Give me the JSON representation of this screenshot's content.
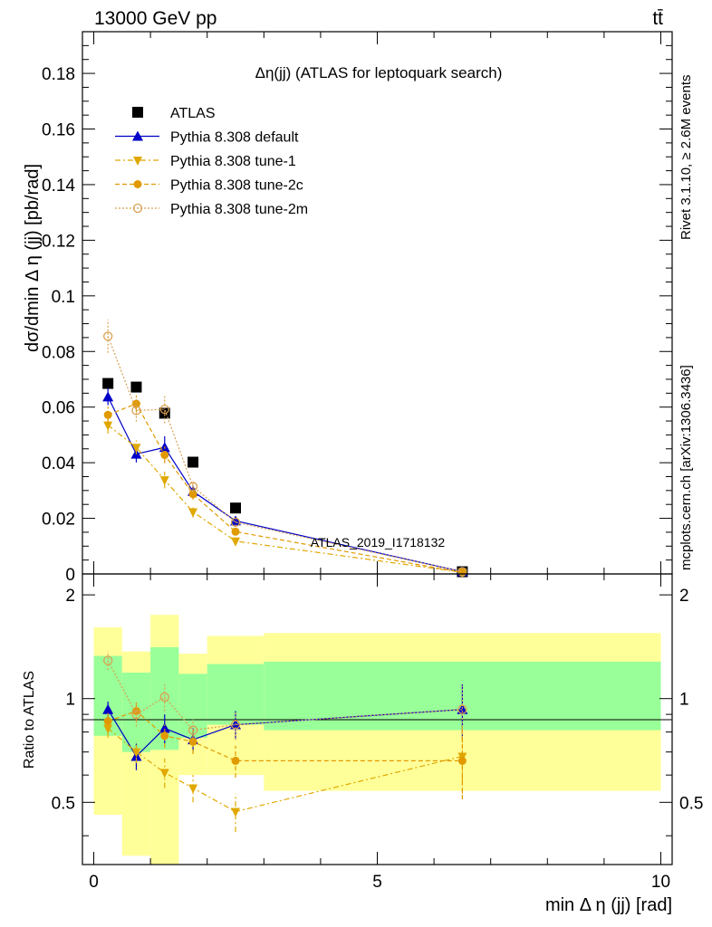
{
  "header": {
    "left": "13000 GeV pp",
    "right": "tt̄"
  },
  "side": {
    "rivet": "Rivet 3.1.10, ≥ 2.6M events",
    "mcplots": "mcplots.cern.ch [arXiv:1306.3436]"
  },
  "watermark": "ATLAS_2019_I1718132",
  "chart_data": {
    "type": "scatter",
    "title": "Δη(jj) (ATLAS for leptoquark search)",
    "xlabel": "min Δ η (jj) [rad]",
    "ylabel": "dσ/dmin Δ η (jj) [pb/rad]",
    "ratio_ylabel": "Ratio to ATLAS",
    "xlim": [
      -0.2,
      10.2
    ],
    "ylim": [
      0,
      0.195
    ],
    "ratio_ylim": [
      0.33,
      2.3
    ],
    "x_ticks": [
      "0",
      "5",
      "10"
    ],
    "x_tick_values": [
      0,
      5,
      10
    ],
    "y_ticks": [
      "0",
      "0.02",
      "0.04",
      "0.06",
      "0.08",
      "0.1",
      "0.12",
      "0.14",
      "0.16",
      "0.18"
    ],
    "y_tick_values": [
      0,
      0.02,
      0.04,
      0.06,
      0.08,
      0.1,
      0.12,
      0.14,
      0.16,
      0.18
    ],
    "ratio_ticks": [
      "0.5",
      "1",
      "2"
    ],
    "ratio_tick_values": [
      0.5,
      1,
      2
    ],
    "legend_position": "top-left",
    "bins": [
      0,
      0.5,
      1,
      1.5,
      2,
      3,
      10
    ],
    "band_inner": [
      [
        0.78,
        1.33
      ],
      [
        0.7,
        1.19
      ],
      [
        0.71,
        1.41
      ],
      [
        0.77,
        1.18
      ],
      [
        0.84,
        1.26
      ],
      [
        0.81,
        1.28
      ]
    ],
    "band_outer": [
      [
        0.46,
        1.61
      ],
      [
        0.35,
        1.37
      ],
      [
        0.33,
        1.75
      ],
      [
        0.6,
        1.35
      ],
      [
        0.6,
        1.52
      ],
      [
        0.54,
        1.55
      ]
    ],
    "series": [
      {
        "name": "ATLAS",
        "style": "data",
        "color": "#000000",
        "marker": "square",
        "x": [
          0.25,
          0.75,
          1.25,
          1.75,
          2.5,
          6.5
        ],
        "y": [
          0.0685,
          0.0672,
          0.0578,
          0.0402,
          0.0237,
          0.0008
        ]
      },
      {
        "name": "Pythia 8.308 default",
        "style": "solid",
        "color": "#0000c8",
        "marker": "triangle-up",
        "x": [
          0.25,
          0.75,
          1.25,
          1.75,
          2.5,
          6.5
        ],
        "y": [
          0.0637,
          0.0431,
          0.0455,
          0.0297,
          0.0191,
          0.0008
        ],
        "err": [
          0.003,
          0.003,
          0.004,
          0.002,
          0.0015,
          0.0001
        ],
        "ratio": [
          0.93,
          0.68,
          0.82,
          0.76,
          0.84,
          0.93
        ],
        "ratio_err": [
          0.05,
          0.06,
          0.08,
          0.06,
          0.08,
          0.17
        ]
      },
      {
        "name": "Pythia 8.308 tune-1",
        "style": "dashdot",
        "color": "#e0a800",
        "marker": "triangle-down",
        "x": [
          0.25,
          0.75,
          1.25,
          1.75,
          2.5,
          6.5
        ],
        "y": [
          0.0535,
          0.0455,
          0.0338,
          0.0223,
          0.0118,
          0.0006
        ],
        "err": [
          0.003,
          0.0025,
          0.003,
          0.002,
          0.0012,
          0.0001
        ],
        "ratio": [
          0.82,
          0.7,
          0.61,
          0.55,
          0.47,
          0.68
        ],
        "ratio_err": [
          0.05,
          0.05,
          0.06,
          0.05,
          0.06,
          0.15
        ]
      },
      {
        "name": "Pythia 8.308 tune-2c",
        "style": "dashed",
        "color": "#e09a00",
        "marker": "circle",
        "x": [
          0.25,
          0.75,
          1.25,
          1.75,
          2.5,
          6.5
        ],
        "y": [
          0.0572,
          0.0612,
          0.0428,
          0.0287,
          0.0152,
          0.0005
        ],
        "err": [
          0.003,
          0.003,
          0.003,
          0.002,
          0.0012,
          0.0001
        ],
        "ratio": [
          0.86,
          0.92,
          0.78,
          0.75,
          0.66,
          0.66
        ],
        "ratio_err": [
          0.06,
          0.06,
          0.06,
          0.06,
          0.07,
          0.15
        ]
      },
      {
        "name": "Pythia 8.308 tune-2m",
        "style": "dotted",
        "color": "#d8a050",
        "marker": "circle-open",
        "x": [
          0.25,
          0.75,
          1.25,
          1.75,
          2.5,
          6.5
        ],
        "y": [
          0.0855,
          0.0588,
          0.0592,
          0.0314,
          0.0186,
          0.0008
        ],
        "err": [
          0.006,
          0.004,
          0.005,
          0.002,
          0.0015,
          0.0001
        ],
        "ratio": [
          1.29,
          0.9,
          1.01,
          0.81,
          0.84,
          0.93
        ],
        "ratio_err": [
          0.08,
          0.07,
          0.09,
          0.06,
          0.08,
          0.16
        ]
      }
    ]
  }
}
